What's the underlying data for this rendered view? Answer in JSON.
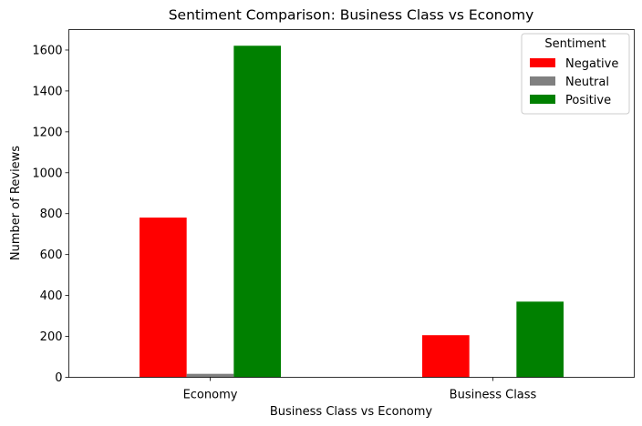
{
  "chart_data": {
    "type": "bar",
    "title": "Sentiment Comparison: Business Class vs Economy",
    "xlabel": "Business Class vs Economy",
    "ylabel": "Number of Reviews",
    "categories": [
      "Economy",
      "Business Class"
    ],
    "series": [
      {
        "name": "Negative",
        "color": "#ff0000",
        "values": [
          781,
          206
        ]
      },
      {
        "name": "Neutral",
        "color": "#808080",
        "values": [
          17,
          0
        ]
      },
      {
        "name": "Positive",
        "color": "#008000",
        "values": [
          1621,
          370
        ]
      }
    ],
    "ylim": [
      0,
      1700
    ],
    "yticks": [
      0,
      200,
      400,
      600,
      800,
      1000,
      1200,
      1400,
      1600
    ],
    "legend": {
      "title": "Sentiment",
      "position": "top-right"
    },
    "grid": false
  }
}
